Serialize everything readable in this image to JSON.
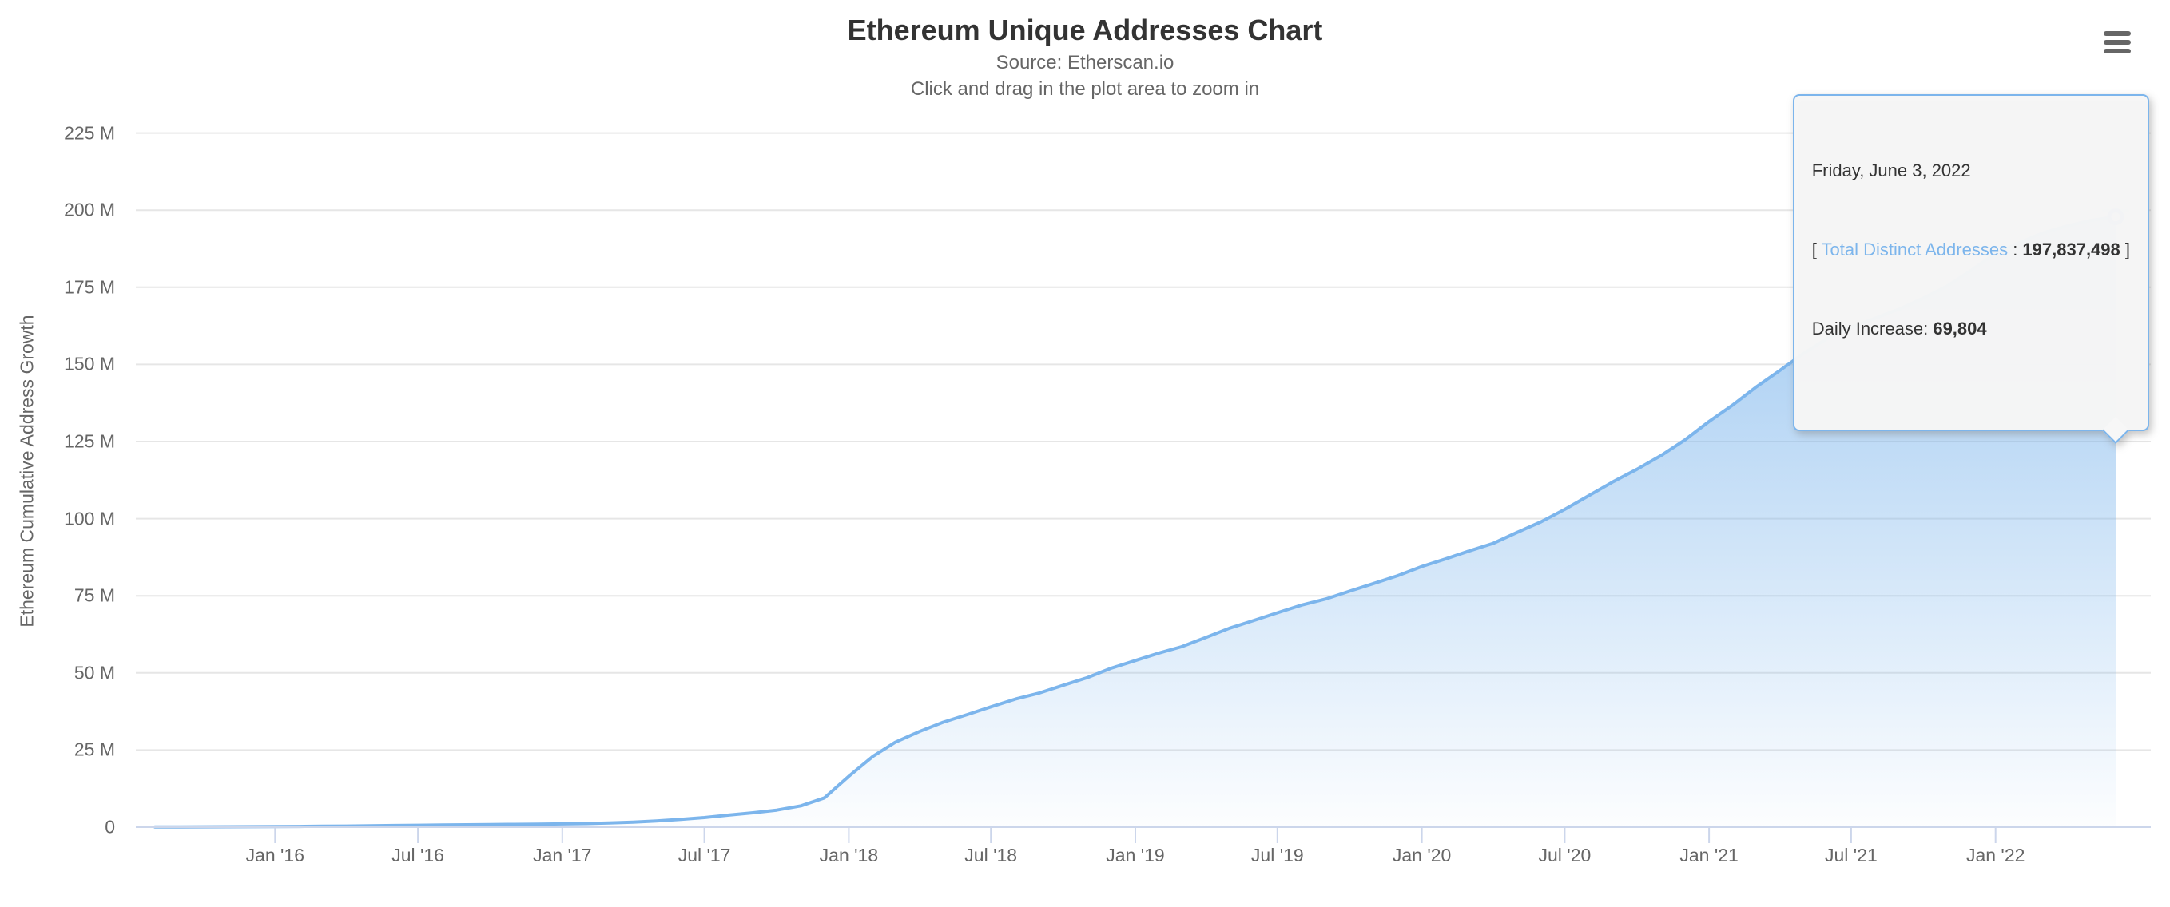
{
  "colors": {
    "series_line": "#7cb5ec",
    "grid_line": "#e6e6e6",
    "axis_line": "#ccd6eb",
    "label_text": "#666666",
    "title_text": "#333333",
    "tooltip_bg": "#f7f7f7",
    "halo_fill": "rgba(124,181,236,0.28)",
    "marker_stroke": "#5f9ce0"
  },
  "menu": {
    "icon": "hamburger-icon"
  },
  "tooltip": {
    "date": "Friday, June 3, 2022",
    "open_bracket": "[ ",
    "series_label": "Total Distinct Addresses",
    "separator": " : ",
    "total_value": "197,837,498",
    "close_bracket": " ]",
    "daily_label": "Daily Increase: ",
    "daily_value": "69,804"
  },
  "chart_data": {
    "type": "area",
    "title": "Ethereum Unique Addresses Chart",
    "subtitle_line1": "Source: Etherscan.io",
    "subtitle_line2": "Click and drag in the plot area to zoom in",
    "ylabel": "Ethereum Cumulative Address Growth",
    "xlabel": "",
    "unit": "millions of addresses",
    "ylim": [
      0,
      230.5
    ],
    "xrange": [
      "2015-07-30",
      "2022-06-03"
    ],
    "grid": true,
    "legend": "none",
    "yticks": [
      {
        "value": 0,
        "label": "0"
      },
      {
        "value": 25,
        "label": "25 M"
      },
      {
        "value": 50,
        "label": "50 M"
      },
      {
        "value": 75,
        "label": "75 M"
      },
      {
        "value": 100,
        "label": "100 M"
      },
      {
        "value": 125,
        "label": "125 M"
      },
      {
        "value": 150,
        "label": "150 M"
      },
      {
        "value": 175,
        "label": "175 M"
      },
      {
        "value": 200,
        "label": "200 M"
      },
      {
        "value": 225,
        "label": "225 M"
      }
    ],
    "xticks": [
      {
        "date": "2016-01-01",
        "label": "Jan '16"
      },
      {
        "date": "2016-07-01",
        "label": "Jul '16"
      },
      {
        "date": "2017-01-01",
        "label": "Jan '17"
      },
      {
        "date": "2017-07-01",
        "label": "Jul '17"
      },
      {
        "date": "2018-01-01",
        "label": "Jan '18"
      },
      {
        "date": "2018-07-01",
        "label": "Jul '18"
      },
      {
        "date": "2019-01-01",
        "label": "Jan '19"
      },
      {
        "date": "2019-07-01",
        "label": "Jul '19"
      },
      {
        "date": "2020-01-01",
        "label": "Jan '20"
      },
      {
        "date": "2020-07-01",
        "label": "Jul '20"
      },
      {
        "date": "2021-01-01",
        "label": "Jan '21"
      },
      {
        "date": "2021-07-01",
        "label": "Jul '21"
      },
      {
        "date": "2022-01-01",
        "label": "Jan '22"
      }
    ],
    "series": [
      {
        "name": "Total Distinct Addresses",
        "points": [
          [
            "2015-08-01",
            0.05
          ],
          [
            "2015-09-01",
            0.08
          ],
          [
            "2015-10-01",
            0.1
          ],
          [
            "2015-11-01",
            0.13
          ],
          [
            "2015-12-01",
            0.16
          ],
          [
            "2016-01-01",
            0.19
          ],
          [
            "2016-02-01",
            0.24
          ],
          [
            "2016-03-01",
            0.3
          ],
          [
            "2016-04-01",
            0.37
          ],
          [
            "2016-05-01",
            0.45
          ],
          [
            "2016-06-01",
            0.54
          ],
          [
            "2016-07-01",
            0.63
          ],
          [
            "2016-08-01",
            0.71
          ],
          [
            "2016-09-01",
            0.78
          ],
          [
            "2016-10-01",
            0.85
          ],
          [
            "2016-11-01",
            0.91
          ],
          [
            "2016-12-01",
            0.97
          ],
          [
            "2017-01-01",
            1.05
          ],
          [
            "2017-02-01",
            1.16
          ],
          [
            "2017-03-01",
            1.35
          ],
          [
            "2017-04-01",
            1.62
          ],
          [
            "2017-05-01",
            2.0
          ],
          [
            "2017-06-01",
            2.5
          ],
          [
            "2017-07-01",
            3.1
          ],
          [
            "2017-08-01",
            3.9
          ],
          [
            "2017-09-01",
            4.65
          ],
          [
            "2017-10-01",
            5.5
          ],
          [
            "2017-11-01",
            6.9
          ],
          [
            "2017-12-01",
            9.5
          ],
          [
            "2018-01-01",
            16.5
          ],
          [
            "2018-02-01",
            23.0
          ],
          [
            "2018-03-01",
            27.5
          ],
          [
            "2018-04-01",
            31.0
          ],
          [
            "2018-05-01",
            34.0
          ],
          [
            "2018-06-01",
            36.5
          ],
          [
            "2018-07-01",
            39.0
          ],
          [
            "2018-08-01",
            41.5
          ],
          [
            "2018-09-01",
            43.5
          ],
          [
            "2018-10-01",
            46.0
          ],
          [
            "2018-11-01",
            48.5
          ],
          [
            "2018-12-01",
            51.5
          ],
          [
            "2019-01-01",
            54.0
          ],
          [
            "2019-02-01",
            56.5
          ],
          [
            "2019-03-01",
            58.5
          ],
          [
            "2019-04-01",
            61.5
          ],
          [
            "2019-05-01",
            64.5
          ],
          [
            "2019-06-01",
            67.0
          ],
          [
            "2019-07-01",
            69.5
          ],
          [
            "2019-08-01",
            72.0
          ],
          [
            "2019-09-01",
            74.0
          ],
          [
            "2019-10-01",
            76.5
          ],
          [
            "2019-11-01",
            79.0
          ],
          [
            "2019-12-01",
            81.5
          ],
          [
            "2020-01-01",
            84.5
          ],
          [
            "2020-02-01",
            87.0
          ],
          [
            "2020-03-01",
            89.5
          ],
          [
            "2020-04-01",
            92.0
          ],
          [
            "2020-05-01",
            95.5
          ],
          [
            "2020-06-01",
            99.0
          ],
          [
            "2020-07-01",
            103.0
          ],
          [
            "2020-08-01",
            107.5
          ],
          [
            "2020-09-01",
            112.0
          ],
          [
            "2020-10-01",
            116.0
          ],
          [
            "2020-11-01",
            120.5
          ],
          [
            "2020-12-01",
            125.5
          ],
          [
            "2021-01-01",
            131.5
          ],
          [
            "2021-02-01",
            137.0
          ],
          [
            "2021-03-01",
            142.5
          ],
          [
            "2021-04-01",
            148.0
          ],
          [
            "2021-05-01",
            153.5
          ],
          [
            "2021-06-01",
            158.5
          ],
          [
            "2021-07-01",
            162.0
          ],
          [
            "2021-08-01",
            165.0
          ],
          [
            "2021-09-01",
            168.0
          ],
          [
            "2021-10-01",
            171.5
          ],
          [
            "2021-11-01",
            175.5
          ],
          [
            "2021-12-01",
            180.5
          ],
          [
            "2022-01-01",
            186.0
          ],
          [
            "2022-02-01",
            189.5
          ],
          [
            "2022-03-01",
            192.5
          ],
          [
            "2022-04-01",
            194.8
          ],
          [
            "2022-05-01",
            196.6
          ],
          [
            "2022-06-03",
            197.837498
          ]
        ]
      }
    ],
    "selected_point": {
      "date": "2022-06-03",
      "date_label": "Friday, June 3, 2022",
      "total_distinct_addresses": 197837498,
      "daily_increase": 69804
    }
  }
}
